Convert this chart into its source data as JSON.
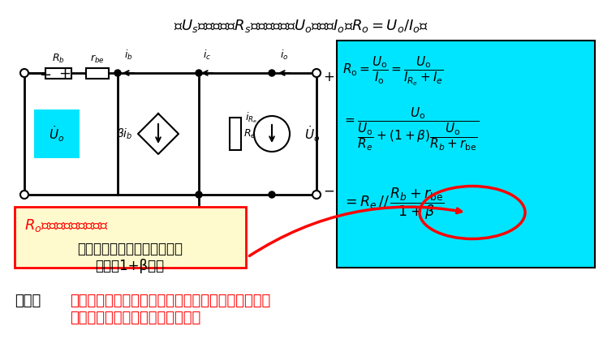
{
  "bg_color": "#ffffff",
  "cyan_box_color": "#00e5ff",
  "title_text": "令$U_s$为零，保留$R_s$，在输出端加$U_o$，产生$I_o$，$R_o=U_o/I_o$。",
  "bottom_text_black": "特点：",
  "bottom_text_red": "输入电阻大，输出电阻小；只放大电流，不放大电压\n；在一定条件下有电压跟随作用！",
  "red_label": "$R_o$与信号源内阻有关！",
  "yellow_box_text": "从射极看基极回路电阻，被减\n小到（1+β）倍",
  "fig_width": 7.43,
  "fig_height": 4.34
}
